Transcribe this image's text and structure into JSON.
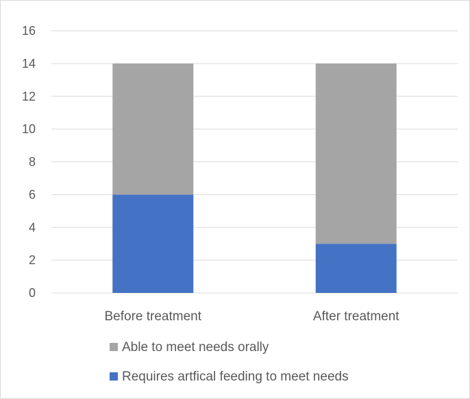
{
  "chart_data": {
    "type": "bar",
    "stacked": true,
    "categories": [
      "Before treatment",
      "After treatment"
    ],
    "series": [
      {
        "name": "Requires artfical feeding to meet needs",
        "values": [
          6,
          3
        ],
        "color": "#4472C4"
      },
      {
        "name": "Able to meet needs orally",
        "values": [
          8,
          11
        ],
        "color": "#A5A5A5"
      }
    ],
    "ylim": [
      0,
      16
    ],
    "yticks": [
      0,
      2,
      4,
      6,
      8,
      10,
      12,
      14,
      16
    ],
    "grid": true,
    "legend_position": "bottom",
    "legend_order": [
      "Able to meet needs orally",
      "Requires artfical feeding to meet needs"
    ]
  },
  "colors": {
    "gridline": "#D9D9D9",
    "frame": "#D9D9D9",
    "text": "#595959"
  }
}
